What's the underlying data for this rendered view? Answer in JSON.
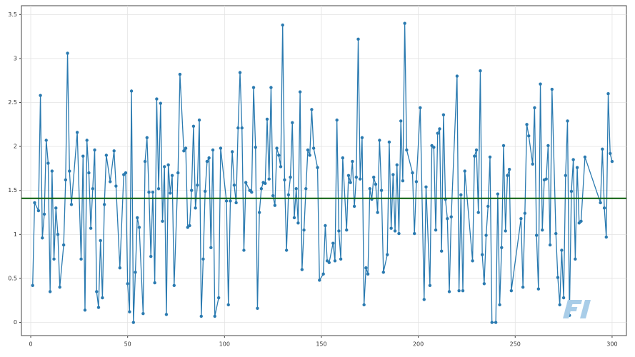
{
  "chart_data": {
    "type": "line",
    "x": [
      1,
      2,
      4,
      5,
      6,
      7,
      8,
      9,
      10,
      11,
      12,
      13,
      14,
      15,
      17,
      18,
      19,
      20,
      21,
      24,
      26,
      27,
      28,
      29,
      30,
      31,
      32,
      33,
      34,
      35,
      36,
      37,
      38,
      39,
      41,
      43,
      44,
      46,
      48,
      49,
      50,
      51,
      52,
      53,
      54,
      55,
      56,
      58,
      59,
      60,
      61,
      62,
      63,
      64,
      65,
      66,
      67,
      68,
      69,
      70,
      71,
      72,
      73,
      74,
      76,
      77,
      79,
      80,
      81,
      82,
      83,
      84,
      85,
      86,
      87,
      88,
      89,
      90,
      91,
      92,
      93,
      94,
      95,
      97,
      98,
      101,
      102,
      103,
      104,
      105,
      106,
      107,
      108,
      109,
      110,
      111,
      113,
      114,
      115,
      116,
      117,
      118,
      119,
      120,
      121,
      122,
      123,
      124,
      125,
      126,
      127,
      128,
      129,
      130,
      131,
      132,
      133,
      134,
      135,
      136,
      137,
      138,
      139,
      140,
      141,
      142,
      143,
      144,
      145,
      146,
      148,
      149,
      151,
      152,
      153,
      154,
      156,
      157,
      158,
      159,
      160,
      161,
      163,
      164,
      165,
      166,
      167,
      168,
      169,
      170,
      171,
      172,
      173,
      174,
      175,
      176,
      177,
      178,
      179,
      180,
      181,
      182,
      184,
      185,
      186,
      187,
      188,
      189,
      190,
      191,
      192,
      193,
      194,
      197,
      198,
      199,
      201,
      203,
      204,
      206,
      207,
      208,
      209,
      210,
      211,
      212,
      213,
      214,
      215,
      216,
      217,
      220,
      221,
      222,
      223,
      224,
      228,
      229,
      230,
      231,
      232,
      233,
      234,
      235,
      236,
      237,
      238,
      240,
      241,
      242,
      243,
      244,
      245,
      246,
      247,
      248,
      253,
      254,
      255,
      256,
      257,
      259,
      260,
      261,
      262,
      263,
      264,
      265,
      266,
      267,
      268,
      269,
      271,
      272,
      273,
      274,
      275,
      276,
      277,
      278,
      279,
      280,
      281,
      282,
      283,
      284,
      286,
      294,
      295,
      296,
      297,
      298,
      299,
      300
    ],
    "series": [
      {
        "color": "#2a7ab0",
        "values": [
          0.42,
          1.36,
          1.27,
          2.58,
          0.96,
          1.23,
          2.07,
          1.81,
          0.35,
          1.72,
          0.72,
          1.3,
          1.0,
          0.4,
          0.88,
          1.62,
          3.06,
          1.72,
          1.34,
          2.16,
          0.72,
          1.89,
          0.14,
          2.07,
          1.7,
          1.07,
          1.52,
          1.96,
          0.35,
          0.17,
          0.93,
          0.28,
          1.34,
          1.9,
          1.6,
          1.95,
          1.55,
          0.62,
          1.68,
          1.7,
          0.44,
          0.12,
          2.63,
          0.0,
          0.57,
          1.19,
          1.08,
          0.1,
          1.83,
          2.1,
          1.48,
          0.75,
          1.48,
          0.45,
          2.54,
          1.52,
          2.49,
          1.15,
          1.77,
          0.09,
          1.79,
          1.47,
          1.67,
          0.42,
          1.7,
          2.82,
          1.95,
          1.98,
          1.08,
          1.1,
          1.5,
          2.23,
          1.3,
          1.56,
          2.3,
          0.07,
          0.72,
          1.49,
          1.83,
          1.87,
          0.85,
          1.96,
          0.07,
          0.28,
          1.98,
          1.38,
          0.2,
          1.38,
          1.94,
          1.56,
          1.36,
          2.21,
          2.84,
          2.21,
          0.82,
          1.59,
          1.5,
          1.48,
          2.67,
          1.99,
          0.16,
          1.25,
          1.52,
          1.59,
          1.58,
          2.31,
          1.63,
          2.67,
          1.44,
          1.33,
          1.98,
          1.9,
          1.77,
          3.38,
          1.62,
          0.82,
          1.45,
          1.65,
          2.27,
          1.19,
          1.52,
          1.13,
          2.62,
          0.6,
          1.05,
          1.52,
          1.96,
          1.9,
          2.42,
          1.98,
          1.76,
          0.48,
          0.55,
          1.1,
          0.7,
          0.68,
          0.9,
          0.7,
          2.3,
          1.04,
          0.72,
          1.87,
          1.05,
          1.67,
          1.59,
          1.83,
          1.32,
          1.65,
          3.22,
          1.63,
          2.1,
          0.2,
          0.62,
          0.55,
          1.52,
          1.4,
          1.65,
          1.57,
          1.25,
          2.07,
          1.5,
          0.57,
          0.77,
          2.05,
          1.07,
          1.68,
          1.04,
          1.79,
          1.01,
          2.29,
          1.61,
          3.4,
          1.96,
          1.7,
          1.01,
          1.6,
          2.44,
          0.26,
          1.54,
          0.42,
          2.01,
          1.99,
          1.05,
          2.15,
          2.2,
          0.81,
          2.36,
          1.4,
          1.18,
          0.35,
          1.2,
          2.8,
          0.36,
          1.45,
          0.36,
          1.72,
          0.7,
          1.89,
          1.96,
          1.25,
          2.86,
          0.77,
          0.44,
          0.99,
          1.32,
          1.88,
          0.0,
          0.0,
          1.46,
          0.2,
          0.85,
          2.01,
          1.04,
          1.67,
          1.74,
          0.36,
          1.18,
          0.4,
          1.24,
          2.25,
          2.12,
          1.8,
          2.44,
          0.99,
          0.38,
          2.71,
          1.05,
          1.62,
          1.63,
          2.01,
          0.88,
          2.65,
          1.01,
          0.51,
          0.2,
          0.82,
          0.28,
          1.67,
          2.29,
          0.08,
          1.49,
          1.85,
          0.72,
          1.76,
          1.13,
          1.15,
          1.88,
          1.36,
          1.97,
          1.3,
          0.97,
          2.6,
          1.92,
          1.83
        ]
      }
    ],
    "hline": {
      "value": 1.41,
      "color": "#146414"
    },
    "xlim": [
      -4.8,
      307.4
    ],
    "ylim": [
      -0.15,
      3.6
    ],
    "xticks": [
      0,
      50,
      100,
      150,
      200,
      250,
      300
    ],
    "yticks": [
      0,
      0.5,
      1,
      1.5,
      2,
      2.5,
      3,
      3.5
    ],
    "grid": true
  }
}
